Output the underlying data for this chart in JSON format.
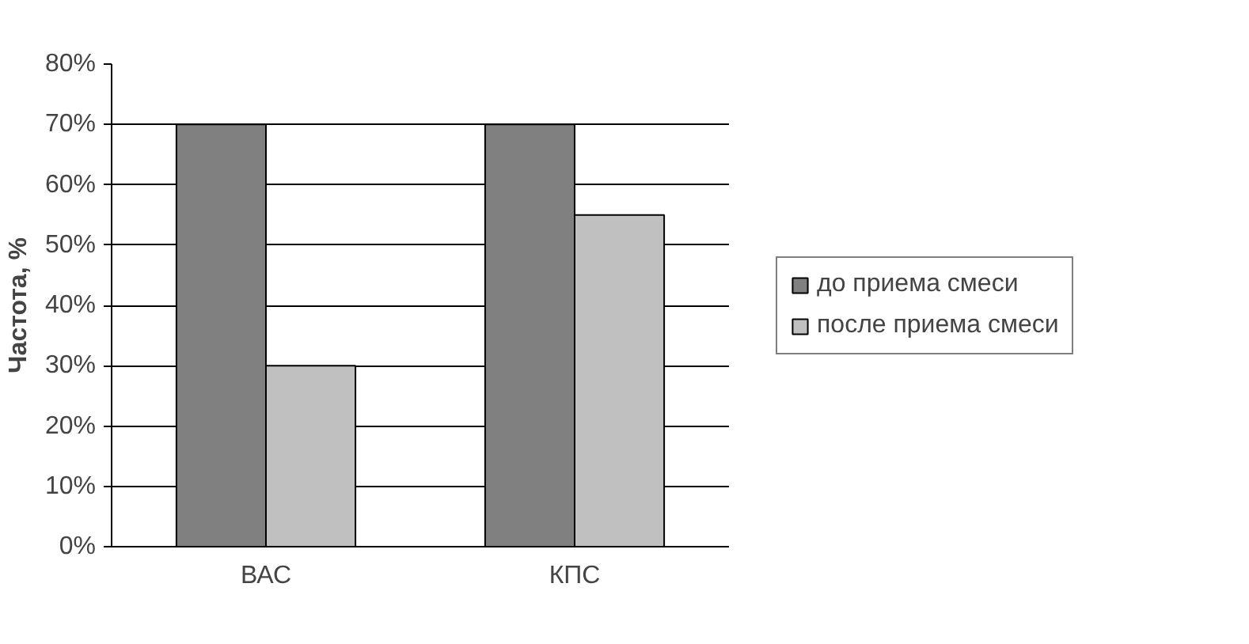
{
  "chart_data": {
    "type": "bar",
    "ylabel": "Частота, %",
    "categories": [
      "ВАС",
      "КПС"
    ],
    "series": [
      {
        "name": "до приема смеси",
        "color": "#808080",
        "values": [
          70,
          70
        ]
      },
      {
        "name": "после приема смеси",
        "color": "#c0c0c0",
        "values": [
          30,
          55
        ]
      }
    ],
    "ylim": [
      0,
      80
    ],
    "yticks": [
      {
        "value": 0,
        "label": "0%"
      },
      {
        "value": 10,
        "label": "10%"
      },
      {
        "value": 20,
        "label": "20%"
      },
      {
        "value": 30,
        "label": "30%"
      },
      {
        "value": 40,
        "label": "40%"
      },
      {
        "value": 50,
        "label": "50%"
      },
      {
        "value": 60,
        "label": "60%"
      },
      {
        "value": 70,
        "label": "70%"
      },
      {
        "value": 80,
        "label": "80%"
      }
    ],
    "grid": "y",
    "legend": "right"
  }
}
